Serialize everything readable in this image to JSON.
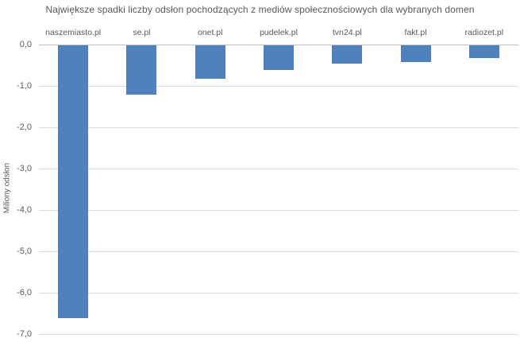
{
  "chart_data": {
    "type": "bar",
    "title": "Największe spadki liczby odsłon pochodzących z mediów społecznościowych dla wybranych domen",
    "ylabel": "Miliony odsłon",
    "xlabel": "",
    "categories": [
      "naszemiasto.pl",
      "se.pl",
      "onet.pl",
      "pudelek.pl",
      "tvn24.pl",
      "fakt.pl",
      "radiozet.pl"
    ],
    "values": [
      -6.6,
      -1.2,
      -0.8,
      -0.6,
      -0.45,
      -0.4,
      -0.3
    ],
    "ylim": [
      -7.0,
      0.0
    ],
    "ytick_step": 1.0,
    "ytick_labels": [
      "0,0",
      "-1,0",
      "-2,0",
      "-3,0",
      "-4,0",
      "-5,0",
      "-6,0",
      "-7,0"
    ],
    "grid": true,
    "legend": "none",
    "bar_color": "#4e81bd",
    "gridline_color": "#dcdcdc",
    "zero_line_color": "#c0c0c0",
    "text_color": "#595959"
  }
}
